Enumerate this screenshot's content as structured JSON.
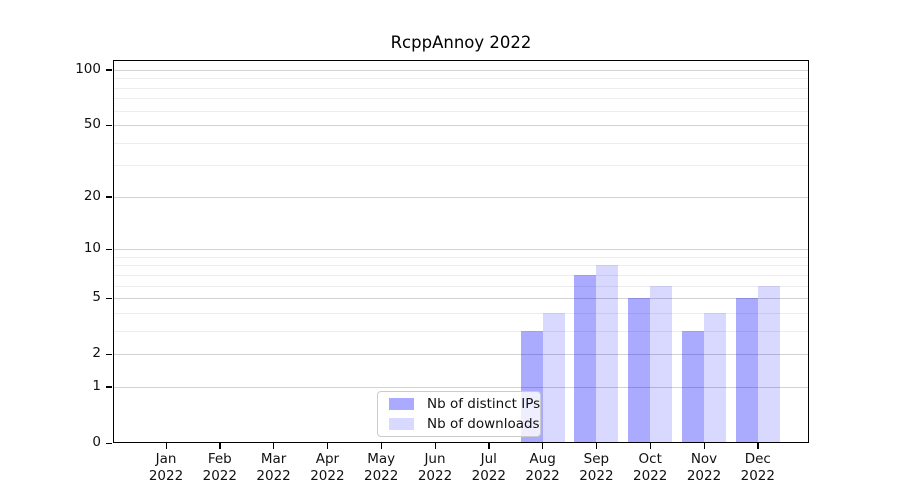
{
  "chart_data": {
    "type": "bar",
    "title": "RcppAnnoy 2022",
    "categories": [
      "Jan",
      "Feb",
      "Mar",
      "Apr",
      "May",
      "Jun",
      "Jul",
      "Aug",
      "Sep",
      "Oct",
      "Nov",
      "Dec"
    ],
    "xtick_year": "2022",
    "series": [
      {
        "name": "Nb of distinct IPs",
        "color": "#0000FF55",
        "values": [
          0,
          0,
          0,
          0,
          0,
          0,
          0,
          3,
          7,
          5,
          3,
          5
        ]
      },
      {
        "name": "Nb of downloads",
        "color": "#0000FF26",
        "values": [
          0,
          0,
          0,
          0,
          0,
          0,
          0,
          4,
          8,
          6,
          4,
          6
        ]
      }
    ],
    "yscale": "log1p",
    "ylim": [
      0,
      113
    ],
    "yticks": [
      0,
      1,
      2,
      5,
      10,
      20,
      50,
      100
    ],
    "minor_gridlines": [
      3,
      4,
      6,
      7,
      8,
      9,
      30,
      40,
      60,
      70,
      80,
      90
    ],
    "grid": "on",
    "legend_position": "lower center inside plot",
    "xlabel": "",
    "ylabel": ""
  }
}
